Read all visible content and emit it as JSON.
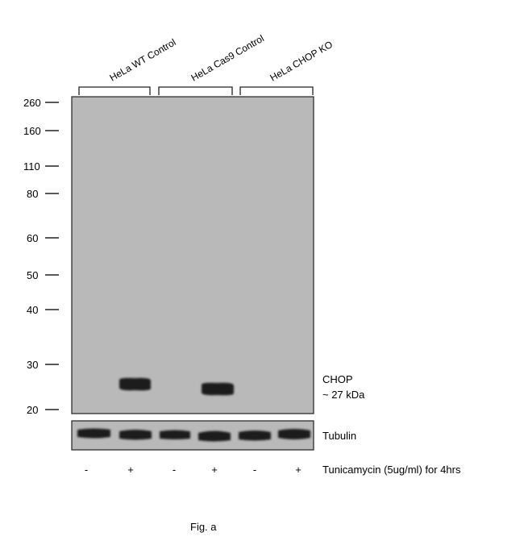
{
  "groups": [
    {
      "label": "HeLa WT Control"
    },
    {
      "label": "HeLa Cas9 Control"
    },
    {
      "label": "HeLa CHOP KO"
    }
  ],
  "markers": [
    "260",
    "160",
    "110",
    "80",
    "60",
    "50",
    "40",
    "30",
    "20"
  ],
  "main_band_label": {
    "line1": "CHOP",
    "line2": "~ 27 kDa"
  },
  "loading_control_label": "Tubulin",
  "treatment": {
    "signs": [
      "-",
      "+",
      "-",
      "+",
      "-",
      "+"
    ],
    "label": "Tunicamycin (5ug/ml) for 4hrs"
  },
  "caption": "Fig. a",
  "colors": {
    "membrane": "#b9b9b9",
    "band": "#1a1a1a",
    "border": "#222222"
  }
}
